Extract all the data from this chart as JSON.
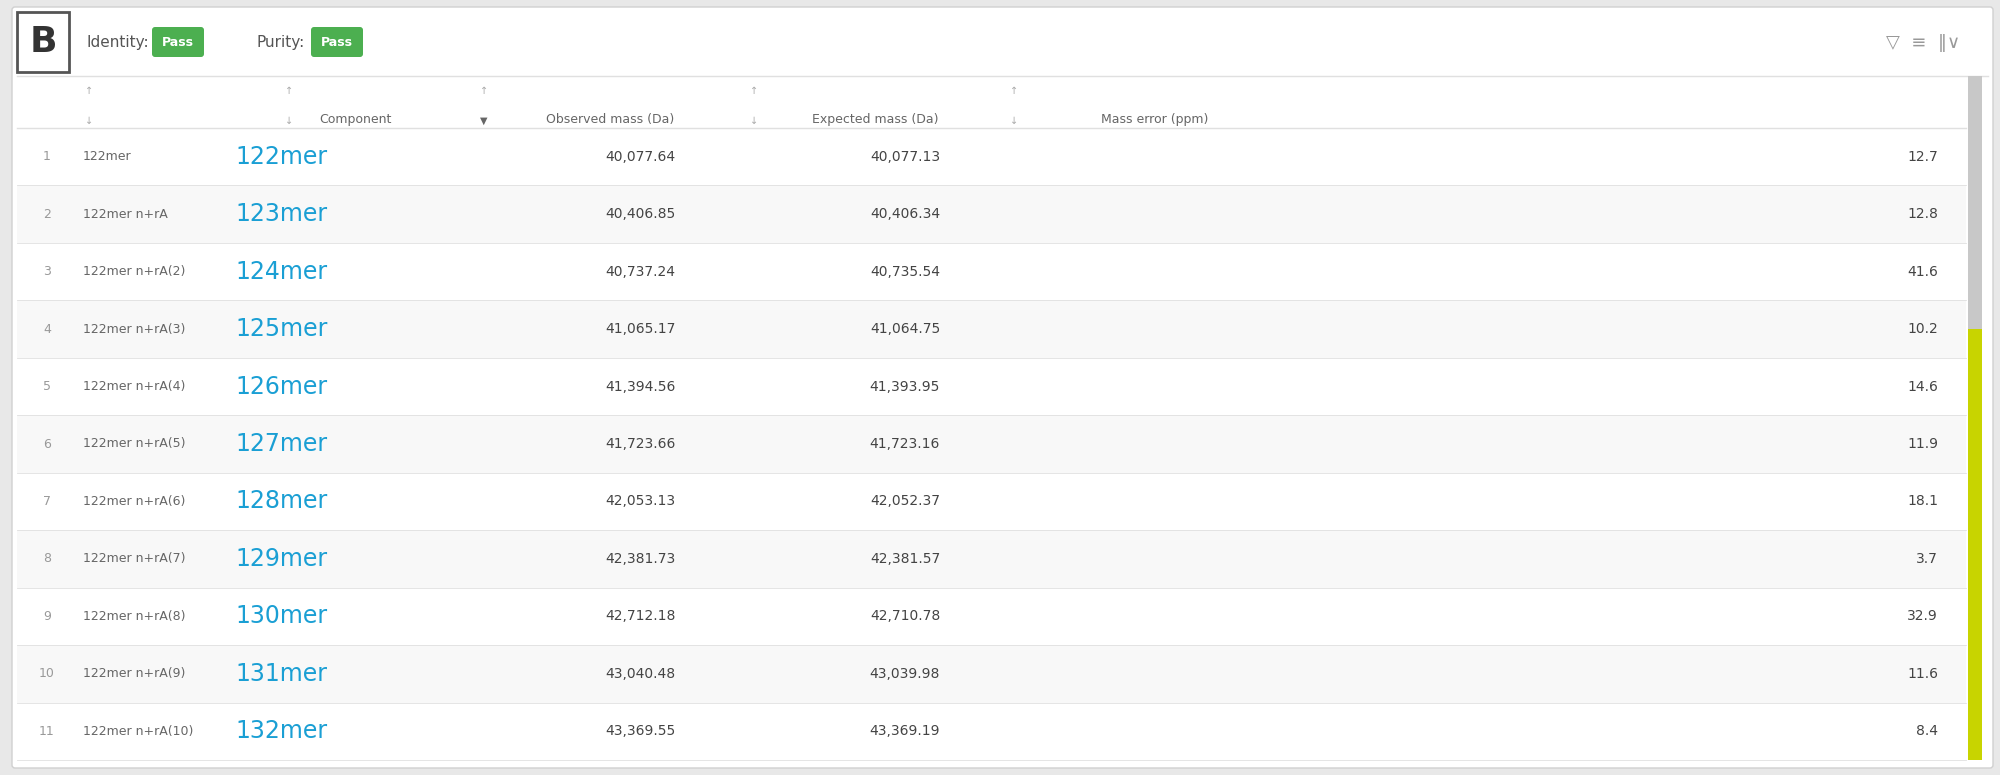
{
  "title_left": "B",
  "identity_label": "Identity:",
  "identity_value": "Pass",
  "purity_label": "Purity:",
  "purity_value": "Pass",
  "badge_color": "#4CAF50",
  "badge_text_color": "#ffffff",
  "rows": [
    {
      "num": 1,
      "label": "122mer",
      "component": "122mer",
      "obs": "40,077.64",
      "exp": "40,077.13",
      "err": "12.7"
    },
    {
      "num": 2,
      "label": "122mer n+rA",
      "component": "123mer",
      "obs": "40,406.85",
      "exp": "40,406.34",
      "err": "12.8"
    },
    {
      "num": 3,
      "label": "122mer n+rA(2)",
      "component": "124mer",
      "obs": "40,737.24",
      "exp": "40,735.54",
      "err": "41.6"
    },
    {
      "num": 4,
      "label": "122mer n+rA(3)",
      "component": "125mer",
      "obs": "41,065.17",
      "exp": "41,064.75",
      "err": "10.2"
    },
    {
      "num": 5,
      "label": "122mer n+rA(4)",
      "component": "126mer",
      "obs": "41,394.56",
      "exp": "41,393.95",
      "err": "14.6"
    },
    {
      "num": 6,
      "label": "122mer n+rA(5)",
      "component": "127mer",
      "obs": "41,723.66",
      "exp": "41,723.16",
      "err": "11.9"
    },
    {
      "num": 7,
      "label": "122mer n+rA(6)",
      "component": "128mer",
      "obs": "42,053.13",
      "exp": "42,052.37",
      "err": "18.1"
    },
    {
      "num": 8,
      "label": "122mer n+rA(7)",
      "component": "129mer",
      "obs": "42,381.73",
      "exp": "42,381.57",
      "err": "3.7"
    },
    {
      "num": 9,
      "label": "122mer n+rA(8)",
      "component": "130mer",
      "obs": "42,712.18",
      "exp": "42,710.78",
      "err": "32.9"
    },
    {
      "num": 10,
      "label": "122mer n+rA(9)",
      "component": "131mer",
      "obs": "43,040.48",
      "exp": "43,039.98",
      "err": "11.6"
    },
    {
      "num": 11,
      "label": "122mer n+rA(10)",
      "component": "132mer",
      "obs": "43,369.55",
      "exp": "43,369.19",
      "err": "8.4"
    }
  ],
  "component_color": "#1a9fd4",
  "row_bg_even": "#ffffff",
  "row_bg_odd": "#f8f8f8",
  "border_color": "#e0e0e0",
  "text_color": "#444444",
  "num_color": "#999999",
  "label_color": "#666666",
  "header_color": "#666666",
  "scrollbar_gray": "#c8c8c8",
  "scrollbar_yellow": "#c8d400",
  "outer_bg": "#e8e8e8",
  "panel_bg": "#ffffff",
  "header_sort_color": "#aaaaaa",
  "header_sort_active": "#666666"
}
